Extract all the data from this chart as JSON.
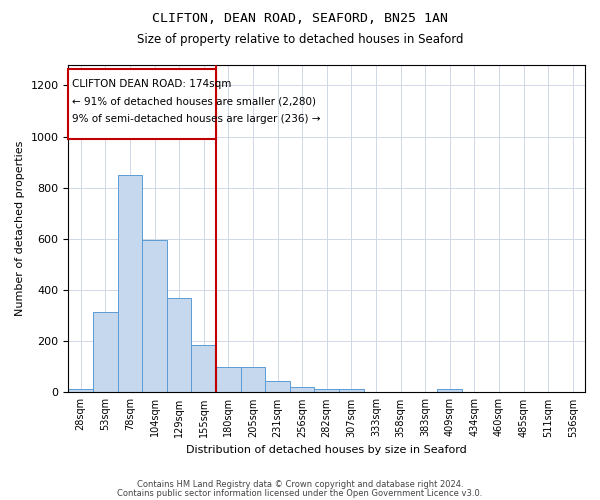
{
  "title1": "CLIFTON, DEAN ROAD, SEAFORD, BN25 1AN",
  "title2": "Size of property relative to detached houses in Seaford",
  "xlabel": "Distribution of detached houses by size in Seaford",
  "ylabel": "Number of detached properties",
  "categories": [
    "28sqm",
    "53sqm",
    "78sqm",
    "104sqm",
    "129sqm",
    "155sqm",
    "180sqm",
    "205sqm",
    "231sqm",
    "256sqm",
    "282sqm",
    "307sqm",
    "333sqm",
    "358sqm",
    "383sqm",
    "409sqm",
    "434sqm",
    "460sqm",
    "485sqm",
    "511sqm",
    "536sqm"
  ],
  "values": [
    15,
    315,
    850,
    595,
    370,
    185,
    100,
    100,
    45,
    20,
    15,
    15,
    0,
    0,
    0,
    13,
    0,
    0,
    0,
    0,
    0
  ],
  "bar_color": "#c5d8ed",
  "bar_edge_color": "#5b9bd5",
  "vline_color": "#c00000",
  "annotation_title": "CLIFTON DEAN ROAD: 174sqm",
  "annotation_line1": "← 91% of detached houses are smaller (2,280)",
  "annotation_line2": "9% of semi-detached houses are larger (236) →",
  "box_color": "#c00000",
  "ylim": [
    0,
    1280
  ],
  "yticks": [
    0,
    200,
    400,
    600,
    800,
    1000,
    1200
  ],
  "footer1": "Contains HM Land Registry data © Crown copyright and database right 2024.",
  "footer2": "Contains public sector information licensed under the Open Government Licence v3.0.",
  "bg_color": "#ffffff",
  "grid_color": "#d0d8e8",
  "vline_index": 5.5
}
